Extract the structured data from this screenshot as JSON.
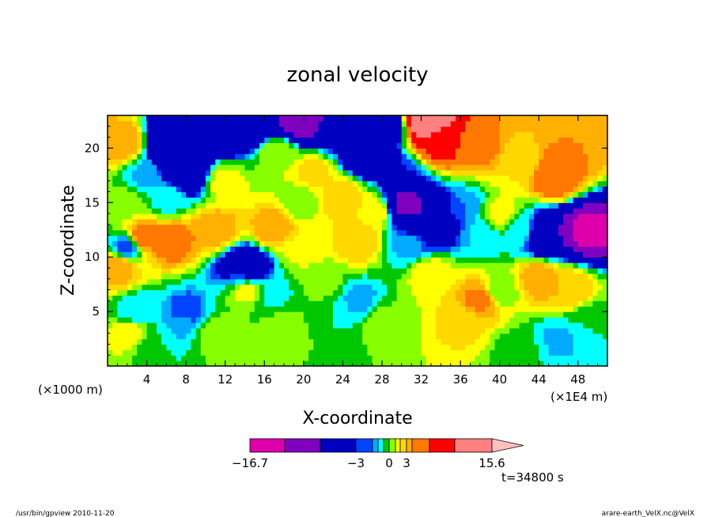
{
  "chart_data": {
    "type": "heatmap",
    "title": "zonal velocity",
    "xlabel": "X-coordinate",
    "ylabel": "Z-coordinate",
    "x_unit_label": "(×1E4 m)",
    "z_unit_label": "(×1000 m)",
    "xlim": [
      0,
      51
    ],
    "ylim": [
      0,
      23
    ],
    "x_ticks": [
      {
        "v": 4,
        "label": "4"
      },
      {
        "v": 8,
        "label": "8"
      },
      {
        "v": 12,
        "label": "12"
      },
      {
        "v": 16,
        "label": "16"
      },
      {
        "v": 20,
        "label": "20"
      },
      {
        "v": 24,
        "label": "24"
      },
      {
        "v": 28,
        "label": "28"
      },
      {
        "v": 32,
        "label": "32"
      },
      {
        "v": 36,
        "label": "36"
      },
      {
        "v": 40,
        "label": "40"
      },
      {
        "v": 44,
        "label": "44"
      },
      {
        "v": 48,
        "label": "48"
      }
    ],
    "y_ticks": [
      {
        "v": 5,
        "label": "5"
      },
      {
        "v": 10,
        "label": "10"
      },
      {
        "v": 15,
        "label": "15"
      },
      {
        "v": 20,
        "label": "20"
      }
    ],
    "colorbar": {
      "levels": [
        -16.7,
        -12,
        -9,
        -3,
        -2.5,
        -2,
        -1,
        0,
        1,
        2,
        3,
        4,
        6,
        9,
        15.6
      ],
      "colors": [
        "#dd00aa",
        "#8000c0",
        "#0000c0",
        "#0044ff",
        "#00aaff",
        "#00ffff",
        "#00c800",
        "#88ff00",
        "#ffff00",
        "#ffd800",
        "#ffb000",
        "#ff7800",
        "#ff0000",
        "#ff8080"
      ],
      "labels": [
        {
          "v": -16.7,
          "label": "−16.7"
        },
        {
          "v": -3,
          "label": "−3"
        },
        {
          "v": 0,
          "label": "0"
        },
        {
          "v": 3,
          "label": "3"
        },
        {
          "v": 15.6,
          "label": "15.6"
        }
      ],
      "extend_max_color": "#ffc0c0"
    },
    "time_label": "t=34800 s",
    "features": [
      {
        "x": 6.5,
        "z": 11.5,
        "value": 5
      },
      {
        "x": 3.5,
        "z": 11.8,
        "value": 5
      },
      {
        "x": 17,
        "z": 12.8,
        "value": 4
      },
      {
        "x": 11,
        "z": 12.5,
        "value": 4
      },
      {
        "x": 25.5,
        "z": 11.5,
        "value": 3
      },
      {
        "x": 27,
        "z": 14.2,
        "value": 2
      },
      {
        "x": 14,
        "z": 7,
        "value": 1.5
      },
      {
        "x": 22,
        "z": 7.5,
        "value": 0.5
      },
      {
        "x": 23,
        "z": 5,
        "value": -1
      },
      {
        "x": 25.5,
        "z": 6,
        "value": -2.5
      },
      {
        "x": 17,
        "z": 6.5,
        "value": -1.2
      },
      {
        "x": 13.5,
        "z": 8.5,
        "value": -2.5
      },
      {
        "x": 14,
        "z": 9,
        "value": -9
      },
      {
        "x": 8,
        "z": 5,
        "value": -3
      },
      {
        "x": 7.5,
        "z": 4,
        "value": -2.2
      },
      {
        "x": 3,
        "z": 5,
        "value": -2
      },
      {
        "x": 2.5,
        "z": 3,
        "value": 2
      },
      {
        "x": 4.5,
        "z": 2,
        "value": -1
      },
      {
        "x": 11,
        "z": 3,
        "value": 0.8
      },
      {
        "x": 18,
        "z": 3.5,
        "value": 0.6
      },
      {
        "x": 28,
        "z": 4,
        "value": 0.5
      },
      {
        "x": 36,
        "z": 4,
        "value": 2.2
      },
      {
        "x": 38,
        "z": 6.2,
        "value": 4.5
      },
      {
        "x": 33,
        "z": 8.5,
        "value": 1.8
      },
      {
        "x": 40,
        "z": 7,
        "value": 0.2
      },
      {
        "x": 44,
        "z": 8,
        "value": 4
      },
      {
        "x": 47,
        "z": 7,
        "value": 3
      },
      {
        "x": 46,
        "z": 2.5,
        "value": -2.2
      },
      {
        "x": 49,
        "z": 4,
        "value": -1
      },
      {
        "x": 42,
        "z": 1.5,
        "value": -0.5
      },
      {
        "x": 33,
        "z": 13,
        "value": -9
      },
      {
        "x": 30.5,
        "z": 15,
        "value": -10
      },
      {
        "x": 36.5,
        "z": 14.5,
        "value": -2.5
      },
      {
        "x": 38,
        "z": 12,
        "value": -2
      },
      {
        "x": 31,
        "z": 11.2,
        "value": -2.4
      },
      {
        "x": 42,
        "z": 12.5,
        "value": -1.5
      },
      {
        "x": 45,
        "z": 12,
        "value": -9
      },
      {
        "x": 49,
        "z": 12.5,
        "value": -13
      },
      {
        "x": 40,
        "z": 14,
        "value": 1.5
      },
      {
        "x": 42,
        "z": 18.5,
        "value": 2
      },
      {
        "x": 45.5,
        "z": 17.5,
        "value": 6
      },
      {
        "x": 38,
        "z": 20,
        "value": 4.5
      },
      {
        "x": 48,
        "z": 20.5,
        "value": 4
      },
      {
        "x": 32.5,
        "z": 22.5,
        "value": 13
      },
      {
        "x": 34,
        "z": 20.5,
        "value": 7
      },
      {
        "x": 30,
        "z": 17.5,
        "value": -3
      },
      {
        "x": 26.5,
        "z": 19.5,
        "value": -9
      },
      {
        "x": 28.5,
        "z": 22,
        "value": -5
      },
      {
        "x": 23,
        "z": 21,
        "value": -3
      },
      {
        "x": 20,
        "z": 22.3,
        "value": -12
      },
      {
        "x": 17.5,
        "z": 19.5,
        "value": 1
      },
      {
        "x": 21,
        "z": 18,
        "value": 2.5
      },
      {
        "x": 24,
        "z": 15.5,
        "value": 3
      },
      {
        "x": 19.5,
        "z": 15,
        "value": 0.5
      },
      {
        "x": 12,
        "z": 17,
        "value": 1.5
      },
      {
        "x": 11,
        "z": 21.5,
        "value": -9
      },
      {
        "x": 6.5,
        "z": 20.5,
        "value": -9
      },
      {
        "x": 8,
        "z": 18,
        "value": -9
      },
      {
        "x": 4,
        "z": 17.5,
        "value": -2.2
      },
      {
        "x": 2,
        "z": 15,
        "value": 0.5
      },
      {
        "x": 1.5,
        "z": 20.5,
        "value": 4
      },
      {
        "x": 15,
        "z": 22.5,
        "value": -9
      },
      {
        "x": 1,
        "z": 9,
        "value": 4
      },
      {
        "x": 2,
        "z": 11,
        "value": -3
      },
      {
        "x": 20,
        "z": 10.5,
        "value": 1.2
      },
      {
        "x": 6,
        "z": 15.5,
        "value": -1.5
      }
    ]
  },
  "footer": {
    "left": "/usr/bin/gpview   2010-11-20",
    "right": "arare-earth_VelX.nc@VelX"
  }
}
